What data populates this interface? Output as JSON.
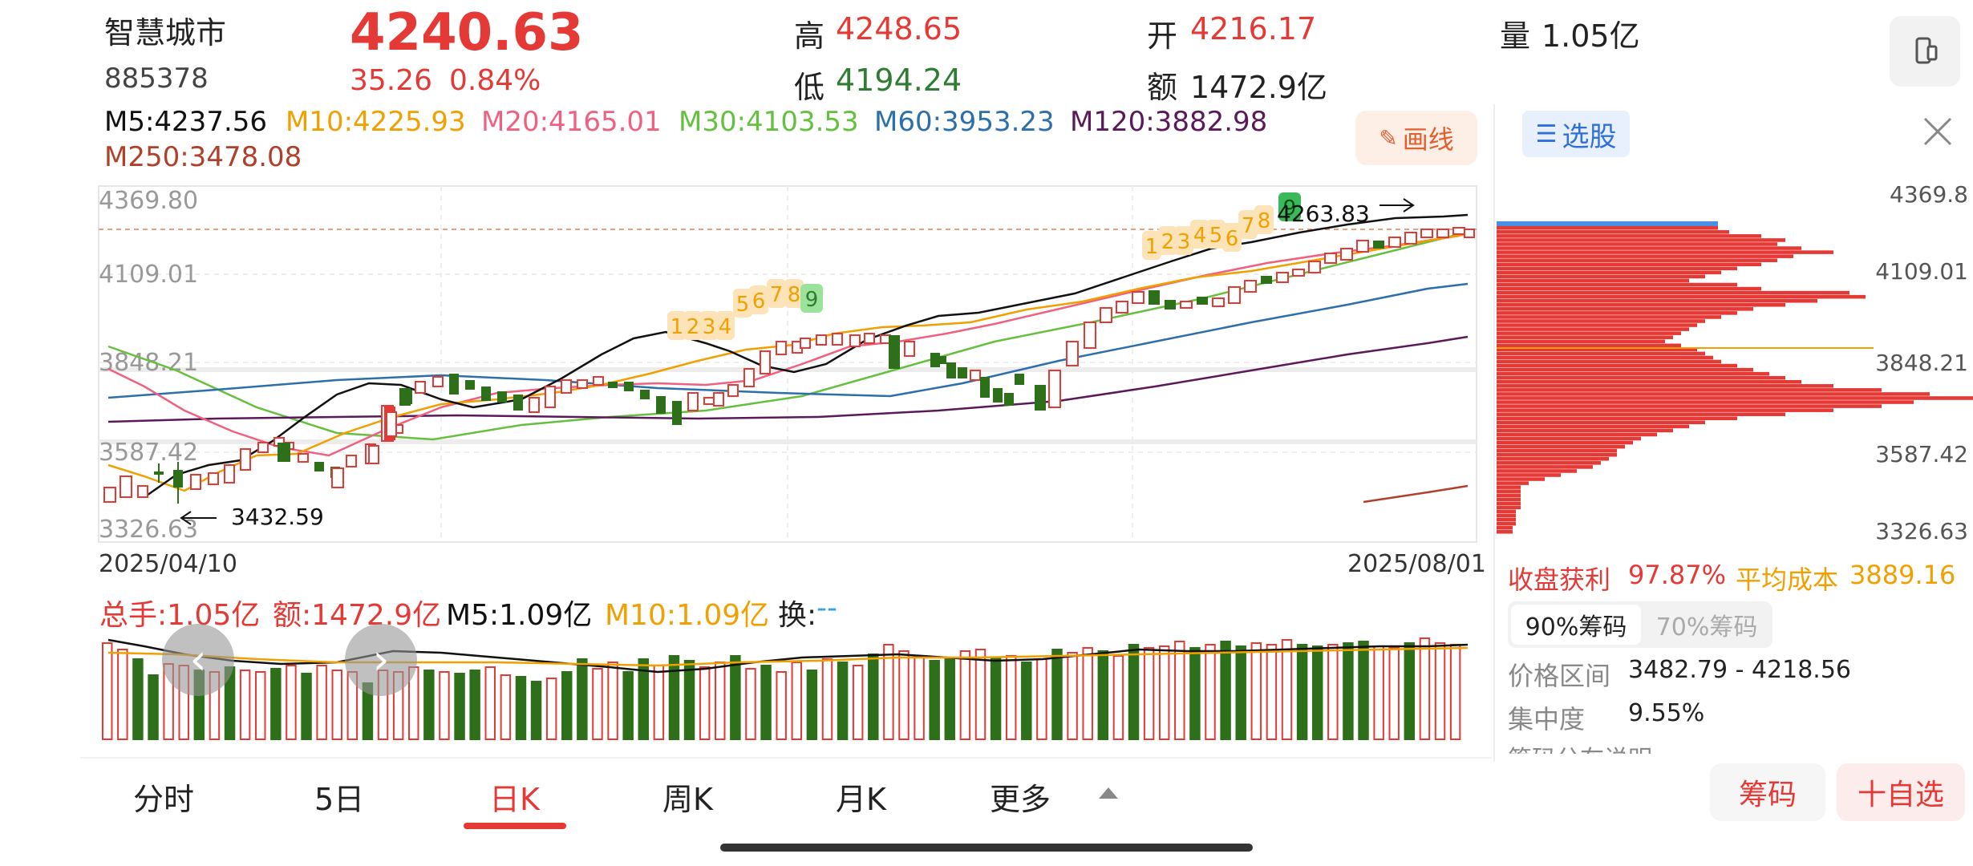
{
  "header": {
    "name": "智慧城市",
    "code": "885378",
    "price": "4240.63",
    "change": "35.26",
    "change_pct": "0.84%",
    "high_label": "高",
    "high_value": "4248.65",
    "low_label": "低",
    "low_value": "4194.24",
    "open_label": "开",
    "open_value": "4216.17",
    "amount_label": "额",
    "amount_value": "1472.9亿",
    "volume_label": "量",
    "volume_value": "1.05亿"
  },
  "ma": {
    "m5": "M5:4237.56",
    "m10": "M10:4225.93",
    "m20": "M20:4165.01",
    "m30": "M30:4103.53",
    "m60": "M60:3953.23",
    "m120": "M120:3882.98",
    "m250": "M250:3478.08",
    "draw_button": "画线"
  },
  "colors": {
    "up": "#e53935",
    "down": "#2e6f1a",
    "m5": "#111111",
    "m10": "#f0a000",
    "m20": "#f06080",
    "m30": "#66c040",
    "m60": "#2c6faa",
    "m120": "#5a1a5a",
    "m250": "#b0402a"
  },
  "chart": {
    "y_labels": [
      "4369.80",
      "4109.01",
      "3848.21",
      "3587.42",
      "3326.63"
    ],
    "date_start": "2025/04/10",
    "date_end": "2025/08/01",
    "high_annot": "4263.83",
    "low_annot": "3432.59",
    "td_seq_1": [
      "1",
      "2",
      "3",
      "4",
      "5",
      "6",
      "7",
      "8",
      "9"
    ],
    "td_seq_2": [
      "1",
      "2",
      "3",
      "4",
      "5",
      "6",
      "7",
      "8",
      "9"
    ]
  },
  "volume": {
    "total": "总手:1.05亿",
    "amount": "额:1472.9亿",
    "m5": "M5:1.09亿",
    "m10": "M10:1.09亿",
    "turnover_label": "换:",
    "turnover_value": "--"
  },
  "side": {
    "select_stock": "选股",
    "price_labels": [
      "4369.8",
      "4109.01",
      "3848.21",
      "3587.42",
      "3326.63"
    ],
    "profit_label": "收盘获利",
    "profit_value": "97.87%",
    "avg_cost_label": "平均成本",
    "avg_cost_value": "3889.16",
    "tab_90": "90%筹码",
    "tab_70": "70%筹码",
    "range_label": "价格区间",
    "range_value": "3482.79 - 4218.56",
    "concentration_label": "集中度",
    "concentration_value": "9.55%",
    "dist_explain": "筹码分布说明"
  },
  "tabs": [
    "分时",
    "5日",
    "日K",
    "周K",
    "月K",
    "更多"
  ],
  "bottom": {
    "chips_button": "筹码",
    "add_watch_button": "十自选"
  }
}
